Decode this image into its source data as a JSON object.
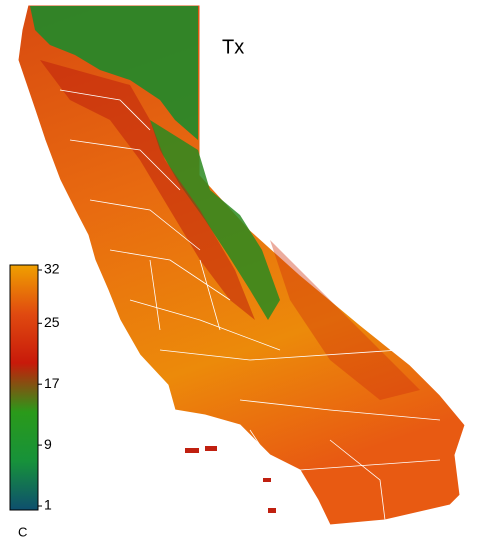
{
  "title": "Tx",
  "colorbar": {
    "lim": [
      1,
      32
    ],
    "ticks": [
      1,
      9,
      17,
      25,
      32
    ],
    "unit": "C",
    "colors": [
      "#0e4f6e",
      "#17923a",
      "#2a9a1a",
      "#c81a0a",
      "#e04a10",
      "#f0a000"
    ]
  }
}
